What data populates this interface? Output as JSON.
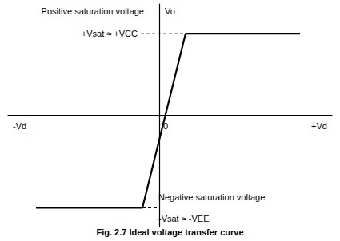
{
  "chart_data": {
    "type": "line",
    "caption": "Fig. 2.7 Ideal voltage transfer curve",
    "x_label_positive": "+Vd",
    "x_label_negative": "-Vd",
    "y_label": "Vo",
    "origin_label": "0",
    "positive_saturation": {
      "title": "Positive saturation voltage",
      "label": "+Vsat ≈ +VCC"
    },
    "negative_saturation": {
      "title": "Negative saturation voltage",
      "label": "-Vsat ≈ -VEE"
    },
    "x": [
      -15.4,
      -2.1,
      3.3,
      17.6
    ],
    "values": [
      -11.9,
      -11.9,
      10.4,
      10.4
    ],
    "color": "#000000",
    "xlim": [
      -18.9,
      21.6
    ],
    "ylim": [
      -14.3,
      14.2
    ],
    "grid": false,
    "tick_labels": false
  }
}
